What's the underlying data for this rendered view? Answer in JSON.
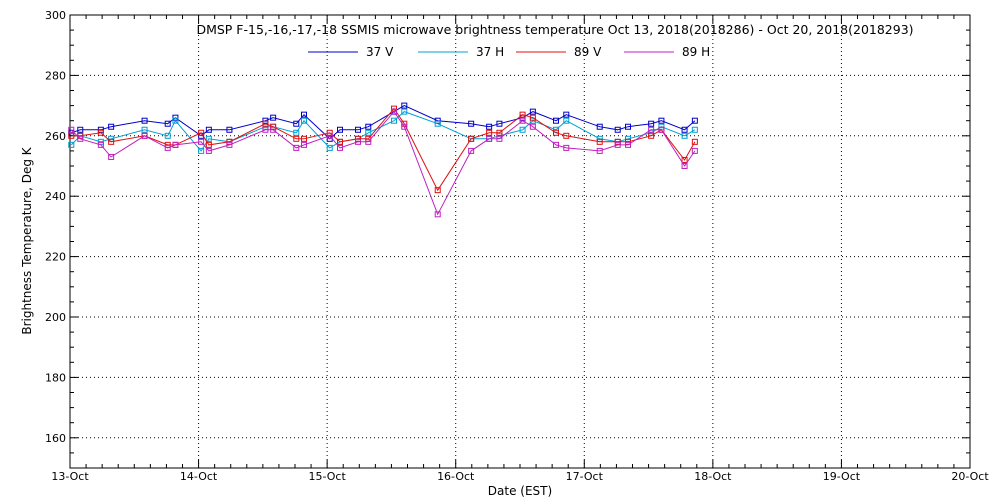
{
  "chart_data": {
    "type": "line",
    "title": "DMSP F-15,-16,-17,-18 SSMIS microwave brightness temperature Oct 13, 2018(2018286) - Oct 20, 2018(2018293)",
    "xlabel": "Date (EST)",
    "ylabel": "Brightness Temperature, Deg K",
    "xlim": [
      0,
      7
    ],
    "ylim": [
      150,
      300
    ],
    "yticks": [
      160,
      180,
      200,
      220,
      240,
      260,
      280,
      300
    ],
    "xticks": [
      {
        "value": 0,
        "label": "13-Oct"
      },
      {
        "value": 1,
        "label": "14-Oct"
      },
      {
        "value": 2,
        "label": "15-Oct"
      },
      {
        "value": 3,
        "label": "16-Oct"
      },
      {
        "value": 4,
        "label": "17-Oct"
      },
      {
        "value": 5,
        "label": "18-Oct"
      },
      {
        "value": 6,
        "label": "19-Oct"
      },
      {
        "value": 7,
        "label": "20-Oct"
      }
    ],
    "grid": true,
    "x": [
      0.01,
      0.08,
      0.24,
      0.32,
      0.58,
      0.76,
      0.82,
      1.02,
      1.08,
      1.24,
      1.52,
      1.58,
      1.76,
      1.82,
      2.02,
      2.1,
      2.24,
      2.32,
      2.52,
      2.6,
      2.86,
      3.12,
      3.26,
      3.34,
      3.52,
      3.6,
      3.78,
      3.86,
      4.12,
      4.26,
      4.34,
      4.52,
      4.6,
      4.78,
      4.86
    ],
    "series": [
      {
        "name": "37 V",
        "color": "#0000c8",
        "values": [
          261,
          262,
          262,
          263,
          265,
          264,
          266,
          260,
          262,
          262,
          265,
          266,
          264,
          267,
          259,
          262,
          262,
          263,
          268,
          270,
          265,
          264,
          263,
          264,
          266,
          268,
          265,
          267,
          263,
          262,
          263,
          264,
          265,
          262,
          265
        ]
      },
      {
        "name": "37 H",
        "color": "#00a0d2",
        "values": [
          257,
          260,
          258,
          259,
          262,
          260,
          265,
          255,
          259,
          258,
          263,
          263,
          261,
          265,
          256,
          258,
          259,
          261,
          265,
          268,
          264,
          259,
          259,
          260,
          262,
          265,
          262,
          265,
          259,
          258,
          259,
          261,
          263,
          260,
          262
        ]
      },
      {
        "name": "89 V",
        "color": "#e01010",
        "values": [
          260,
          260,
          261,
          258,
          260,
          257,
          257,
          261,
          257,
          258,
          264,
          263,
          259,
          259,
          261,
          258,
          259,
          259,
          269,
          264,
          242,
          259,
          261,
          261,
          267,
          266,
          261,
          260,
          258,
          258,
          258,
          260,
          262,
          252,
          258
        ]
      },
      {
        "name": "89 H",
        "color": "#c020c0",
        "values": [
          262,
          259,
          257,
          253,
          260,
          256,
          257,
          258,
          255,
          257,
          262,
          262,
          256,
          257,
          260,
          256,
          258,
          258,
          268,
          263,
          234,
          255,
          259,
          259,
          265,
          263,
          257,
          256,
          255,
          257,
          257,
          262,
          262,
          250,
          255
        ]
      }
    ]
  }
}
